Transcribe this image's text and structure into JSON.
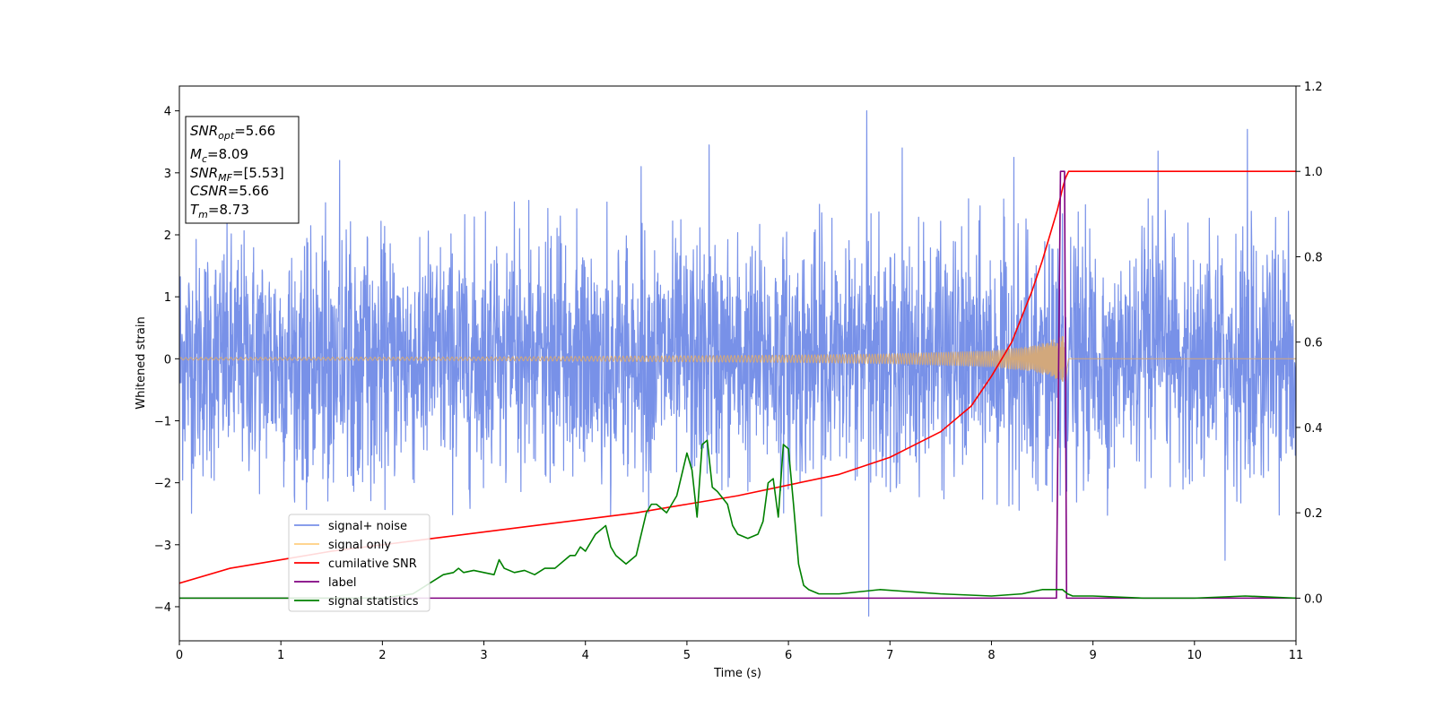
{
  "chart_data": {
    "type": "line",
    "xlabel": "Time (s)",
    "ylabel": "Whitened strain",
    "xlim": [
      0,
      11
    ],
    "ylim": [
      -4.55,
      4.4
    ],
    "y2lim": [
      -0.1,
      1.2
    ],
    "xticks": [
      "0",
      "1",
      "2",
      "3",
      "4",
      "5",
      "6",
      "7",
      "8",
      "9",
      "10",
      "11"
    ],
    "yticks": [
      "−4",
      "−3",
      "−2",
      "−1",
      "0",
      "1",
      "2",
      "3",
      "4"
    ],
    "y2ticks": [
      "0.0",
      "0.2",
      "0.4",
      "0.6",
      "0.8",
      "1.0",
      "1.2"
    ],
    "grid": false,
    "legend_placement": "lower-left",
    "annotation": {
      "lines": [
        {
          "var": "SNR",
          "sub": "opt",
          "value": "=5.66"
        },
        {
          "var": "M",
          "sub": "c",
          "value": "=8.09"
        },
        {
          "var": "SNR",
          "sub": "MF",
          "value": "=[5.53]"
        },
        {
          "var": "CSNR",
          "sub": "",
          "value": "=5.66"
        },
        {
          "var": "T",
          "sub": "m",
          "value": "=8.73"
        }
      ]
    },
    "series": [
      {
        "name": "signal+ noise",
        "axis": "left",
        "color": "#7891e8",
        "kind": "noise",
        "std": 0.95,
        "envelope": [
          [
            0,
            2.6
          ],
          [
            11,
            2.6
          ]
        ],
        "peaks": [
          [
            6.77,
            4.0
          ],
          [
            6.79,
            -4.15
          ],
          [
            7.12,
            3.4
          ],
          [
            9.64,
            3.35
          ],
          [
            10.52,
            3.7
          ],
          [
            5.22,
            3.45
          ],
          [
            1.58,
            3.2
          ],
          [
            8.22,
            3.25
          ],
          [
            4.55,
            3.1
          ],
          [
            10.3,
            -3.25
          ]
        ]
      },
      {
        "name": "signal only",
        "axis": "left",
        "color": "#d2a87c",
        "kind": "chirp",
        "t_merge": 8.73,
        "amp_points": [
          [
            0,
            0.02
          ],
          [
            3,
            0.03
          ],
          [
            6,
            0.06
          ],
          [
            7,
            0.08
          ],
          [
            8,
            0.13
          ],
          [
            8.4,
            0.2
          ],
          [
            8.6,
            0.3
          ],
          [
            8.73,
            0.38
          ]
        ]
      },
      {
        "name": "cumilative SNR",
        "axis": "right",
        "color": "#ff0000",
        "x": [
          0,
          0.5,
          1,
          1.5,
          2,
          2.5,
          3,
          3.5,
          4,
          4.5,
          5,
          5.5,
          6,
          6.5,
          7,
          7.5,
          7.8,
          8.0,
          8.2,
          8.4,
          8.5,
          8.6,
          8.65,
          8.7,
          8.73,
          8.76,
          11
        ],
        "values": [
          0.035,
          0.07,
          0.09,
          0.11,
          0.125,
          0.14,
          0.155,
          0.17,
          0.185,
          0.2,
          0.22,
          0.24,
          0.265,
          0.29,
          0.33,
          0.39,
          0.45,
          0.52,
          0.6,
          0.72,
          0.79,
          0.87,
          0.91,
          0.96,
          0.985,
          1.0,
          1.0
        ]
      },
      {
        "name": "label",
        "axis": "right",
        "color": "#800080",
        "x": [
          0,
          8.62,
          8.64,
          8.68,
          8.72,
          8.74,
          11
        ],
        "values": [
          0.0,
          0.0,
          0.0,
          1.0,
          1.0,
          0.0,
          0.0
        ]
      },
      {
        "name": "signal statistics",
        "axis": "right",
        "color": "#008000",
        "x": [
          0,
          0.5,
          1,
          1.5,
          2.0,
          2.3,
          2.5,
          2.6,
          2.7,
          2.75,
          2.8,
          2.9,
          3.0,
          3.1,
          3.15,
          3.2,
          3.3,
          3.4,
          3.5,
          3.6,
          3.7,
          3.8,
          3.85,
          3.9,
          3.95,
          4.0,
          4.1,
          4.2,
          4.25,
          4.3,
          4.4,
          4.5,
          4.6,
          4.65,
          4.7,
          4.8,
          4.9,
          5.0,
          5.05,
          5.1,
          5.15,
          5.2,
          5.25,
          5.3,
          5.4,
          5.45,
          5.5,
          5.6,
          5.7,
          5.75,
          5.8,
          5.85,
          5.9,
          5.95,
          6.0,
          6.05,
          6.1,
          6.15,
          6.2,
          6.3,
          6.5,
          6.7,
          6.9,
          7.2,
          7.5,
          8.0,
          8.3,
          8.5,
          8.6,
          8.7,
          8.75,
          8.8,
          9.0,
          9.5,
          10.0,
          10.5,
          11
        ],
        "values": [
          0.0,
          0.0,
          0.0,
          0.0,
          0.0,
          0.01,
          0.04,
          0.055,
          0.06,
          0.07,
          0.06,
          0.065,
          0.06,
          0.055,
          0.09,
          0.07,
          0.06,
          0.065,
          0.055,
          0.07,
          0.07,
          0.09,
          0.1,
          0.1,
          0.12,
          0.11,
          0.15,
          0.17,
          0.12,
          0.1,
          0.08,
          0.1,
          0.2,
          0.22,
          0.22,
          0.2,
          0.24,
          0.34,
          0.3,
          0.19,
          0.36,
          0.37,
          0.26,
          0.25,
          0.22,
          0.17,
          0.15,
          0.14,
          0.15,
          0.18,
          0.27,
          0.28,
          0.19,
          0.36,
          0.35,
          0.22,
          0.08,
          0.03,
          0.02,
          0.01,
          0.01,
          0.015,
          0.02,
          0.015,
          0.01,
          0.005,
          0.01,
          0.02,
          0.02,
          0.02,
          0.01,
          0.005,
          0.005,
          0.0,
          0.0,
          0.005,
          0.0
        ]
      }
    ]
  }
}
